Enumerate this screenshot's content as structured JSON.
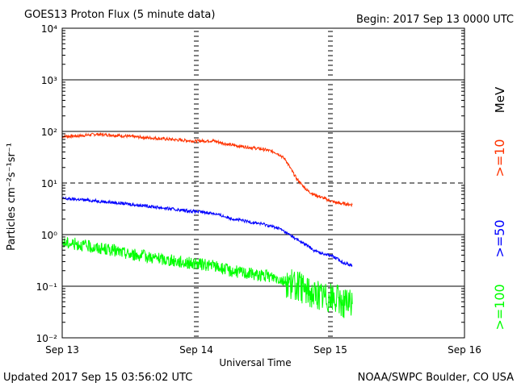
{
  "header": {
    "title": "GOES13 Proton Flux (5 minute data)",
    "begin": "Begin: 2017 Sep 13 0000 UTC"
  },
  "footer": {
    "updated": "Updated 2017 Sep 15 03:56:02 UTC",
    "credit": "NOAA/SWPC Boulder, CO USA"
  },
  "colors": {
    "ge10": "#ff3300",
    "ge50": "#0000ff",
    "ge100": "#00ff00",
    "gridline": "#000000",
    "background": "#ffffff"
  },
  "chart_data": {
    "type": "line",
    "title": "GOES13 Proton Flux (5 minute data)",
    "xlabel": "Universal Time",
    "ylabel": "Particles cm⁻²s⁻¹sr⁻¹",
    "y_scale": "log",
    "ylim": [
      0.01,
      10000
    ],
    "xlim": [
      "2017-09-13 00:00",
      "2017-09-16 00:00"
    ],
    "x_ticks": [
      "Sep 13",
      "Sep 14",
      "Sep 15",
      "Sep 16"
    ],
    "y_ticks": [
      "10⁻²",
      "10⁻¹",
      "10⁰",
      "10¹",
      "10²",
      "10³",
      "10⁴"
    ],
    "energy_unit": "MeV",
    "dashed_threshold": 10,
    "series": [
      {
        "name": ">=10",
        "color": "#ff3300",
        "x": [
          "2017-09-13 00:00",
          "2017-09-13 03:00",
          "2017-09-13 06:00",
          "2017-09-13 09:00",
          "2017-09-13 12:00",
          "2017-09-13 15:00",
          "2017-09-13 18:00",
          "2017-09-13 21:00",
          "2017-09-14 00:00",
          "2017-09-14 03:00",
          "2017-09-14 06:00",
          "2017-09-14 09:00",
          "2017-09-14 12:00",
          "2017-09-14 14:00",
          "2017-09-14 15:00",
          "2017-09-14 16:00",
          "2017-09-14 17:00",
          "2017-09-14 18:00",
          "2017-09-14 19:00",
          "2017-09-14 20:00",
          "2017-09-14 21:00",
          "2017-09-14 22:00",
          "2017-09-15 00:00",
          "2017-09-15 01:00",
          "2017-09-15 02:00",
          "2017-09-15 03:00",
          "2017-09-15 03:55"
        ],
        "values": [
          80,
          82,
          88,
          85,
          80,
          76,
          72,
          68,
          65,
          66,
          55,
          50,
          45,
          40,
          35,
          28,
          18,
          12,
          9,
          7,
          6,
          5.5,
          4.5,
          4.2,
          4.0,
          3.9,
          3.8
        ]
      },
      {
        "name": ">=50",
        "color": "#0000ff",
        "x": [
          "2017-09-13 00:00",
          "2017-09-13 03:00",
          "2017-09-13 06:00",
          "2017-09-13 09:00",
          "2017-09-13 12:00",
          "2017-09-13 15:00",
          "2017-09-13 18:00",
          "2017-09-13 21:00",
          "2017-09-14 00:00",
          "2017-09-14 03:00",
          "2017-09-14 06:00",
          "2017-09-14 09:00",
          "2017-09-14 12:00",
          "2017-09-14 14:00",
          "2017-09-14 15:00",
          "2017-09-14 16:00",
          "2017-09-14 17:00",
          "2017-09-14 18:00",
          "2017-09-14 19:00",
          "2017-09-14 20:00",
          "2017-09-14 21:00",
          "2017-09-14 22:00",
          "2017-09-15 00:00",
          "2017-09-15 01:00",
          "2017-09-15 02:00",
          "2017-09-15 03:00",
          "2017-09-15 03:55"
        ],
        "values": [
          5.0,
          4.8,
          4.5,
          4.2,
          3.9,
          3.6,
          3.3,
          3.0,
          2.8,
          2.6,
          2.1,
          1.8,
          1.6,
          1.4,
          1.3,
          1.1,
          0.95,
          0.8,
          0.7,
          0.6,
          0.5,
          0.45,
          0.4,
          0.35,
          0.3,
          0.27,
          0.25
        ]
      },
      {
        "name": ">=100",
        "color": "#00ff00",
        "x": [
          "2017-09-13 00:00",
          "2017-09-13 03:00",
          "2017-09-13 06:00",
          "2017-09-13 09:00",
          "2017-09-13 12:00",
          "2017-09-13 15:00",
          "2017-09-13 18:00",
          "2017-09-13 21:00",
          "2017-09-14 00:00",
          "2017-09-14 03:00",
          "2017-09-14 06:00",
          "2017-09-14 09:00",
          "2017-09-14 12:00",
          "2017-09-14 14:00",
          "2017-09-14 15:00",
          "2017-09-14 16:00",
          "2017-09-14 17:00",
          "2017-09-14 18:00",
          "2017-09-14 19:00",
          "2017-09-14 20:00",
          "2017-09-14 21:00",
          "2017-09-14 22:00",
          "2017-09-15 00:00",
          "2017-09-15 01:00",
          "2017-09-15 02:00",
          "2017-09-15 03:00",
          "2017-09-15 03:55"
        ],
        "values": [
          0.7,
          0.65,
          0.55,
          0.5,
          0.42,
          0.38,
          0.33,
          0.3,
          0.27,
          0.25,
          0.2,
          0.18,
          0.16,
          0.15,
          0.14,
          0.12,
          0.11,
          0.1,
          0.09,
          0.08,
          0.07,
          0.065,
          0.06,
          0.055,
          0.05,
          0.045,
          0.045
        ]
      }
    ]
  }
}
